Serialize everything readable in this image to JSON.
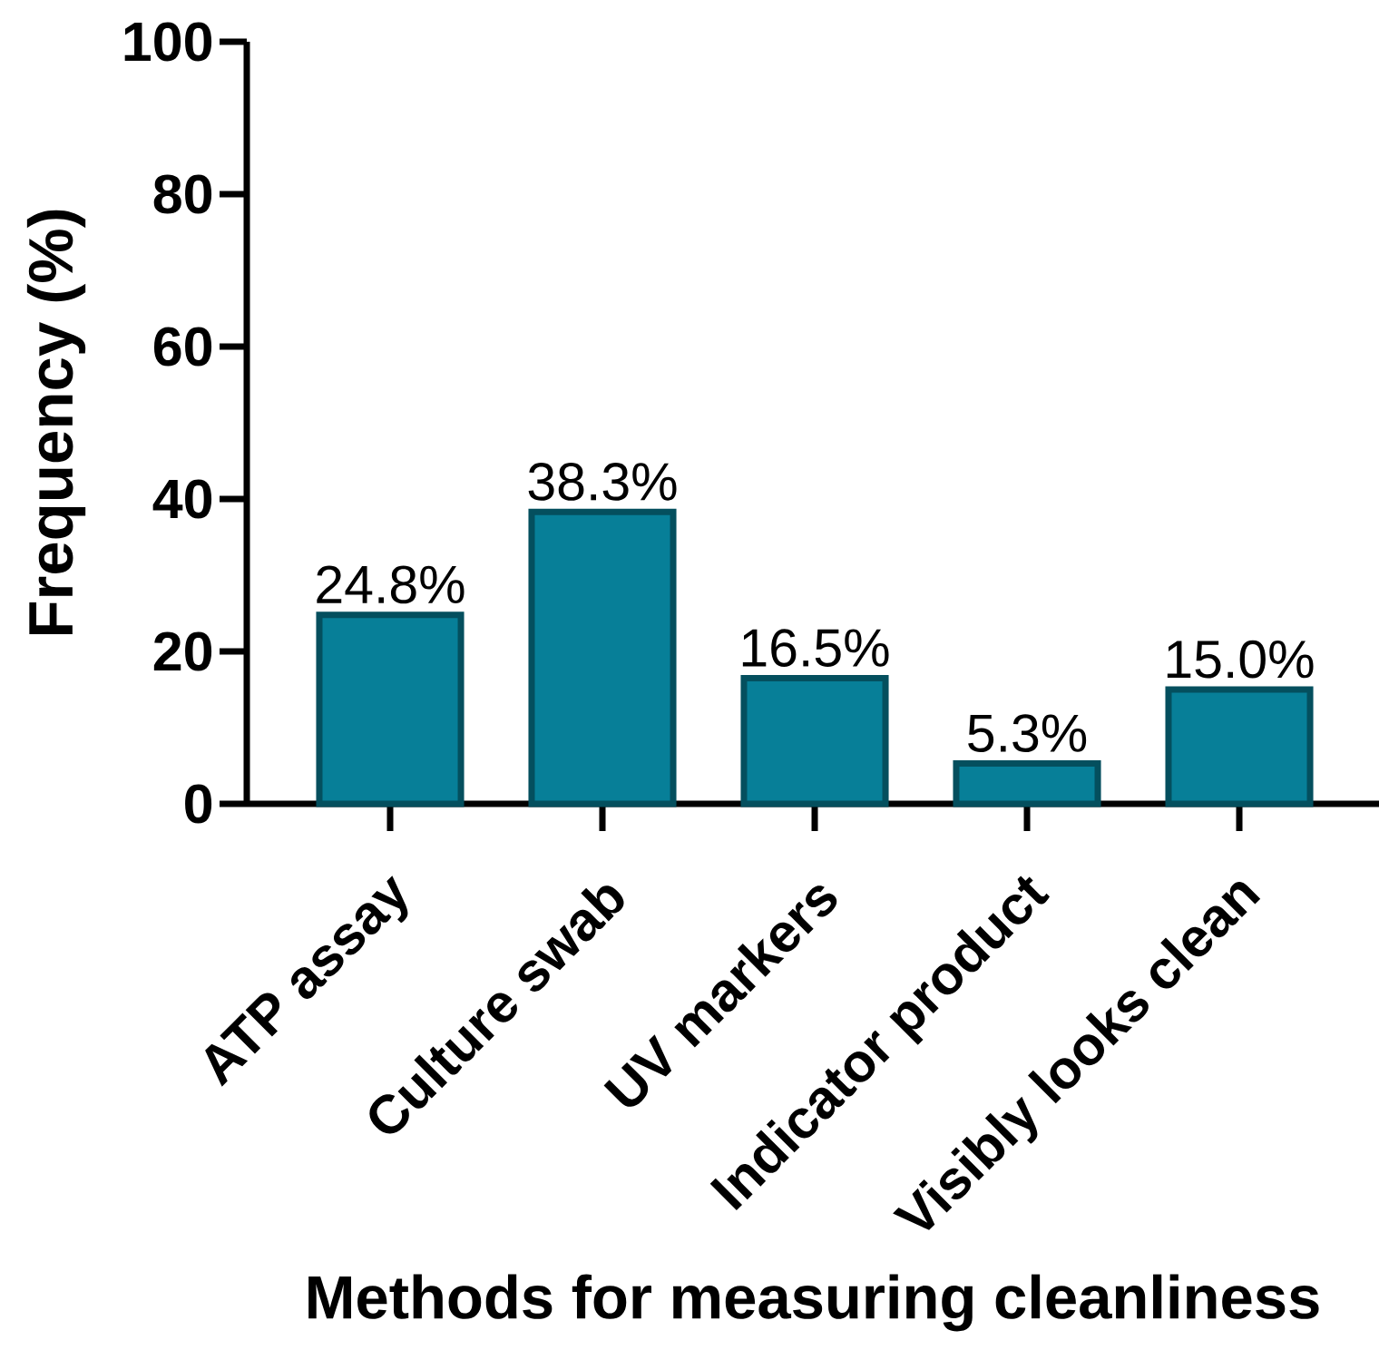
{
  "chart_data": {
    "type": "bar",
    "xlabel": "Methods for measuring cleanliness",
    "ylabel": "Frequency (%)",
    "categories": [
      "ATP assay",
      "Culture swab",
      "UV markers",
      "Indicator product",
      "Visibly looks clean"
    ],
    "values": [
      24.8,
      38.3,
      16.5,
      5.3,
      15.0
    ],
    "value_labels": [
      "24.8%",
      "38.3%",
      "16.5%",
      "5.3%",
      "15.0%"
    ],
    "color": "#077f98",
    "ylim": [
      0,
      100
    ],
    "yticks": [
      0,
      20,
      40,
      60,
      80,
      100
    ]
  }
}
